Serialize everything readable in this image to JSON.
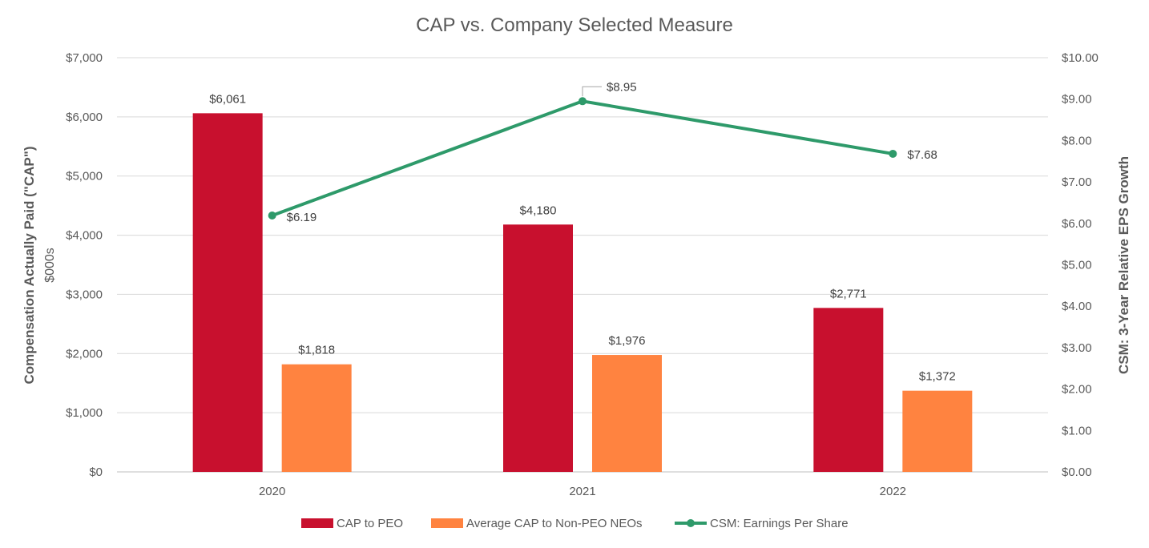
{
  "chart_data": {
    "type": "bar",
    "title": "CAP vs. Company Selected Measure",
    "categories": [
      "2020",
      "2021",
      "2022"
    ],
    "ylabel": "Compensation Actually Paid (\"CAP\")",
    "ylabel_sub": "$000s",
    "y2label": "CSM: 3-Year Relative EPS Growth",
    "ylim": [
      0,
      7000
    ],
    "y2lim": [
      0,
      10
    ],
    "yticks": [
      "$0",
      "$1,000",
      "$2,000",
      "$3,000",
      "$4,000",
      "$5,000",
      "$6,000",
      "$7,000"
    ],
    "y2ticks": [
      "$0.00",
      "$1.00",
      "$2.00",
      "$3.00",
      "$4.00",
      "$5.00",
      "$6.00",
      "$7.00",
      "$8.00",
      "$9.00",
      "$10.00"
    ],
    "grid": true,
    "legend_position": "bottom",
    "series": [
      {
        "name": "CAP to PEO",
        "kind": "bar",
        "axis": "left",
        "color": "#c8102e",
        "values": [
          6061,
          4180,
          2771
        ],
        "labels": [
          "$6,061",
          "$4,180",
          "$2,771"
        ]
      },
      {
        "name": "Average CAP to Non-PEO NEOs",
        "kind": "bar",
        "axis": "left",
        "color": "#ff8340",
        "values": [
          1818,
          1976,
          1372
        ],
        "labels": [
          "$1,818",
          "$1,976",
          "$1,372"
        ]
      },
      {
        "name": "CSM: Earnings Per Share",
        "kind": "line",
        "axis": "right",
        "color": "#2e9a6a",
        "values": [
          6.19,
          8.95,
          7.68
        ],
        "labels": [
          "$6.19",
          "$8.95",
          "$7.68"
        ]
      }
    ]
  }
}
